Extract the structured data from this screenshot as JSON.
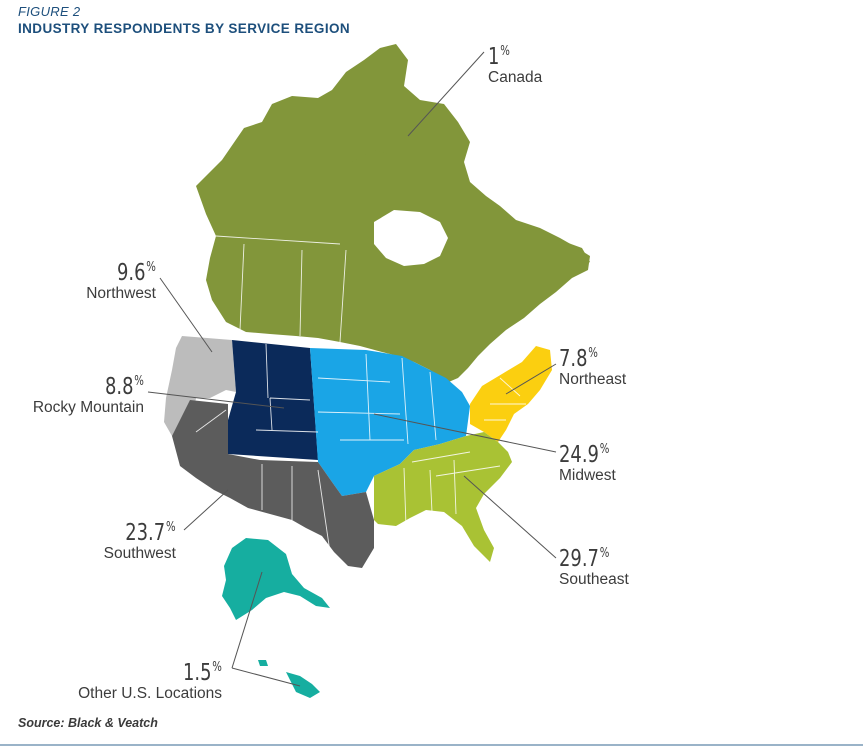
{
  "figure_label": "FIGURE 2",
  "title": "INDUSTRY RESPONDENTS BY SERVICE REGION",
  "source": "Source: Black & Veatch",
  "regions": [
    {
      "id": "canada",
      "name": "Canada",
      "value": "1",
      "unit": "%",
      "color": "#82963a"
    },
    {
      "id": "northwest",
      "name": "Northwest",
      "value": "9.6",
      "unit": "%",
      "color": "#bcbcbc"
    },
    {
      "id": "rocky",
      "name": "Rocky Mountain",
      "value": "8.8",
      "unit": "%",
      "color": "#0b2a5a"
    },
    {
      "id": "northeast",
      "name": "Northeast",
      "value": "7.8",
      "unit": "%",
      "color": "#fbcf10"
    },
    {
      "id": "midwest",
      "name": "Midwest",
      "value": "24.9",
      "unit": "%",
      "color": "#1aa5e6"
    },
    {
      "id": "southwest",
      "name": "Southwest",
      "value": "23.7",
      "unit": "%",
      "color": "#5c5c5c"
    },
    {
      "id": "southeast",
      "name": "Southeast",
      "value": "29.7",
      "unit": "%",
      "color": "#a9c234"
    },
    {
      "id": "other",
      "name": "Other U.S. Locations",
      "value": "1.5",
      "unit": "%",
      "color": "#16aea0"
    }
  ]
}
